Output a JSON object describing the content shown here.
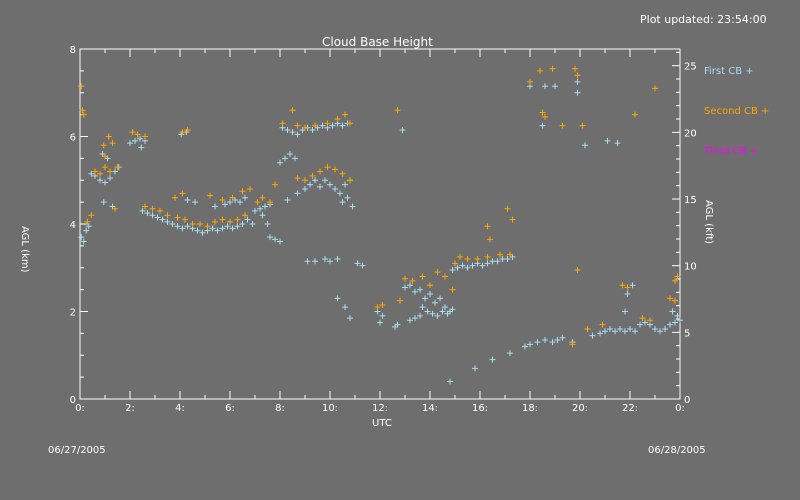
{
  "header": {
    "updated": "Plot updated: 23:54:00"
  },
  "footer": {
    "start_date": "06/27/2005",
    "end_date": "06/28/2005"
  },
  "colors": {
    "background": "#6e6e6e",
    "axes": "#ffffff",
    "first_cb": "#a8dcf0",
    "second_cb": "#ffa500",
    "third_cb": "#ff00ff"
  },
  "chart_data": {
    "type": "scatter",
    "title": "Cloud Base Height",
    "xlabel": "UTC",
    "ylabel": "AGL (km)",
    "ylabel_right": "AGL (kft)",
    "xlim": [
      0,
      24
    ],
    "ylim": [
      0,
      8
    ],
    "ylim_right": [
      0,
      26.25
    ],
    "x_tick_labels": [
      "0:",
      "2:",
      "4:",
      "6:",
      "8:",
      "10:",
      "12:",
      "14:",
      "16:",
      "18:",
      "20:",
      "22:",
      "0:"
    ],
    "x_tick_values": [
      0,
      2,
      4,
      6,
      8,
      10,
      12,
      14,
      16,
      18,
      20,
      22,
      24
    ],
    "y_tick_labels": [
      "0",
      "2",
      "4",
      "6",
      "8"
    ],
    "y_tick_values": [
      0,
      2,
      4,
      6,
      8
    ],
    "y_right_tick_labels": [
      "0",
      "5",
      "10",
      "15",
      "20",
      "25"
    ],
    "y_right_tick_values": [
      0,
      5,
      10,
      15,
      20,
      25
    ],
    "legend": [
      {
        "label": "First CB +",
        "color": "#a8dcf0"
      },
      {
        "label": "Second CB +",
        "color": "#ffa500"
      },
      {
        "label": "Third CB +",
        "color": "#ff00ff"
      }
    ],
    "series": [
      {
        "name": "First CB",
        "color": "#a8dcf0",
        "points": [
          [
            0.05,
            3.7
          ],
          [
            0.15,
            3.6
          ],
          [
            0.25,
            3.85
          ],
          [
            0.35,
            3.95
          ],
          [
            0.45,
            5.15
          ],
          [
            0.6,
            5.1
          ],
          [
            0.8,
            5.0
          ],
          [
            1.0,
            4.95
          ],
          [
            1.2,
            5.05
          ],
          [
            1.4,
            5.2
          ],
          [
            1.55,
            5.3
          ],
          [
            0.9,
            5.6
          ],
          [
            1.1,
            5.5
          ],
          [
            0.95,
            4.5
          ],
          [
            1.3,
            4.4
          ],
          [
            2.0,
            5.85
          ],
          [
            2.2,
            5.9
          ],
          [
            2.4,
            5.95
          ],
          [
            2.6,
            5.9
          ],
          [
            2.45,
            5.75
          ],
          [
            2.5,
            4.3
          ],
          [
            2.7,
            4.25
          ],
          [
            2.9,
            4.2
          ],
          [
            3.1,
            4.15
          ],
          [
            3.3,
            4.1
          ],
          [
            3.5,
            4.05
          ],
          [
            3.7,
            4.0
          ],
          [
            3.9,
            3.95
          ],
          [
            4.1,
            3.9
          ],
          [
            4.3,
            3.95
          ],
          [
            4.5,
            3.9
          ],
          [
            4.7,
            3.85
          ],
          [
            4.9,
            3.8
          ],
          [
            5.1,
            3.85
          ],
          [
            5.3,
            3.9
          ],
          [
            5.5,
            3.85
          ],
          [
            5.7,
            3.9
          ],
          [
            5.9,
            3.95
          ],
          [
            6.1,
            3.9
          ],
          [
            6.3,
            3.95
          ],
          [
            6.5,
            4.0
          ],
          [
            6.7,
            4.1
          ],
          [
            6.9,
            4.0
          ],
          [
            4.05,
            6.05
          ],
          [
            4.25,
            6.1
          ],
          [
            4.3,
            4.55
          ],
          [
            4.6,
            4.5
          ],
          [
            5.4,
            4.4
          ],
          [
            5.8,
            4.45
          ],
          [
            6.0,
            4.5
          ],
          [
            6.2,
            4.55
          ],
          [
            6.4,
            4.5
          ],
          [
            6.6,
            4.6
          ],
          [
            7.0,
            4.3
          ],
          [
            7.2,
            4.35
          ],
          [
            7.4,
            4.4
          ],
          [
            7.6,
            4.45
          ],
          [
            7.3,
            4.2
          ],
          [
            7.5,
            4.0
          ],
          [
            7.6,
            3.7
          ],
          [
            7.8,
            3.65
          ],
          [
            8.0,
            3.6
          ],
          [
            8.0,
            5.4
          ],
          [
            8.2,
            5.5
          ],
          [
            8.4,
            5.6
          ],
          [
            8.6,
            5.5
          ],
          [
            8.1,
            6.2
          ],
          [
            8.3,
            6.15
          ],
          [
            8.5,
            6.1
          ],
          [
            8.7,
            6.05
          ],
          [
            8.9,
            6.15
          ],
          [
            9.1,
            6.2
          ],
          [
            9.3,
            6.15
          ],
          [
            9.5,
            6.2
          ],
          [
            9.7,
            6.25
          ],
          [
            9.9,
            6.2
          ],
          [
            8.3,
            4.55
          ],
          [
            8.7,
            4.7
          ],
          [
            9.0,
            4.8
          ],
          [
            9.2,
            4.9
          ],
          [
            9.4,
            5.0
          ],
          [
            9.6,
            4.85
          ],
          [
            9.8,
            5.0
          ],
          [
            10.0,
            4.9
          ],
          [
            10.2,
            4.8
          ],
          [
            10.4,
            4.7
          ],
          [
            10.6,
            4.9
          ],
          [
            10.8,
            5.0
          ],
          [
            10.1,
            6.25
          ],
          [
            10.3,
            6.3
          ],
          [
            10.5,
            6.25
          ],
          [
            10.7,
            6.3
          ],
          [
            10.5,
            4.5
          ],
          [
            10.7,
            4.6
          ],
          [
            10.9,
            4.4
          ],
          [
            9.1,
            3.15
          ],
          [
            9.4,
            3.15
          ],
          [
            9.8,
            3.2
          ],
          [
            10.0,
            3.15
          ],
          [
            10.3,
            3.2
          ],
          [
            10.3,
            2.3
          ],
          [
            10.6,
            2.1
          ],
          [
            10.8,
            1.85
          ],
          [
            11.1,
            3.1
          ],
          [
            11.3,
            3.05
          ],
          [
            11.9,
            2.0
          ],
          [
            12.1,
            1.9
          ],
          [
            12.0,
            1.75
          ],
          [
            12.6,
            1.65
          ],
          [
            12.7,
            1.7
          ],
          [
            12.9,
            6.15
          ],
          [
            13.0,
            2.55
          ],
          [
            13.2,
            2.6
          ],
          [
            13.4,
            2.45
          ],
          [
            13.6,
            2.5
          ],
          [
            13.7,
            2.1
          ],
          [
            13.9,
            2.0
          ],
          [
            14.1,
            1.95
          ],
          [
            14.3,
            1.9
          ],
          [
            14.5,
            2.0
          ],
          [
            14.7,
            1.95
          ],
          [
            14.9,
            2.05
          ],
          [
            13.2,
            1.8
          ],
          [
            13.4,
            1.85
          ],
          [
            13.6,
            1.9
          ],
          [
            13.8,
            2.3
          ],
          [
            14.0,
            2.4
          ],
          [
            14.2,
            2.2
          ],
          [
            14.4,
            2.3
          ],
          [
            14.6,
            2.1
          ],
          [
            14.8,
            2.0
          ],
          [
            14.9,
            2.95
          ],
          [
            15.1,
            3.0
          ],
          [
            15.3,
            3.05
          ],
          [
            15.5,
            3.0
          ],
          [
            15.7,
            3.05
          ],
          [
            15.9,
            3.1
          ],
          [
            16.1,
            3.05
          ],
          [
            16.3,
            3.1
          ],
          [
            16.5,
            3.15
          ],
          [
            16.7,
            3.15
          ],
          [
            16.9,
            3.2
          ],
          [
            17.1,
            3.2
          ],
          [
            17.3,
            3.25
          ],
          [
            14.8,
            0.4
          ],
          [
            15.8,
            0.7
          ],
          [
            16.5,
            0.9
          ],
          [
            17.2,
            1.05
          ],
          [
            17.8,
            1.2
          ],
          [
            18.0,
            1.25
          ],
          [
            18.3,
            1.3
          ],
          [
            18.6,
            1.35
          ],
          [
            18.9,
            1.3
          ],
          [
            19.1,
            1.35
          ],
          [
            19.3,
            1.4
          ],
          [
            19.7,
            1.3
          ],
          [
            18.5,
            6.25
          ],
          [
            18.0,
            7.15
          ],
          [
            18.6,
            7.15
          ],
          [
            19.0,
            7.15
          ],
          [
            19.9,
            7.25
          ],
          [
            19.9,
            7.0
          ],
          [
            20.2,
            5.8
          ],
          [
            21.1,
            5.9
          ],
          [
            21.5,
            5.85
          ],
          [
            20.5,
            1.45
          ],
          [
            20.8,
            1.5
          ],
          [
            21.0,
            1.55
          ],
          [
            21.2,
            1.6
          ],
          [
            21.4,
            1.55
          ],
          [
            21.6,
            1.6
          ],
          [
            21.8,
            1.55
          ],
          [
            22.0,
            1.6
          ],
          [
            22.2,
            1.55
          ],
          [
            21.8,
            2.0
          ],
          [
            21.9,
            2.4
          ],
          [
            22.1,
            2.6
          ],
          [
            22.4,
            1.7
          ],
          [
            22.6,
            1.75
          ],
          [
            22.8,
            1.7
          ],
          [
            23.0,
            1.6
          ],
          [
            23.2,
            1.55
          ],
          [
            23.4,
            1.6
          ],
          [
            23.6,
            1.7
          ],
          [
            23.8,
            1.75
          ],
          [
            24.0,
            1.8
          ],
          [
            23.7,
            2.0
          ],
          [
            23.9,
            1.9
          ]
        ]
      },
      {
        "name": "Second CB",
        "color": "#ffa500",
        "points": [
          [
            0.05,
            7.15
          ],
          [
            0.1,
            6.6
          ],
          [
            0.15,
            6.5
          ],
          [
            0.3,
            4.05
          ],
          [
            0.45,
            4.2
          ],
          [
            0.6,
            5.2
          ],
          [
            0.8,
            5.15
          ],
          [
            1.0,
            5.3
          ],
          [
            1.2,
            5.2
          ],
          [
            1.0,
            5.55
          ],
          [
            0.95,
            5.8
          ],
          [
            1.15,
            6.0
          ],
          [
            1.3,
            5.85
          ],
          [
            1.5,
            5.3
          ],
          [
            1.4,
            4.35
          ],
          [
            2.1,
            6.1
          ],
          [
            2.3,
            6.05
          ],
          [
            2.6,
            6.0
          ],
          [
            2.6,
            4.4
          ],
          [
            2.9,
            4.35
          ],
          [
            3.2,
            4.3
          ],
          [
            3.5,
            4.2
          ],
          [
            3.9,
            4.15
          ],
          [
            4.2,
            4.1
          ],
          [
            4.5,
            4.0
          ],
          [
            4.8,
            4.0
          ],
          [
            5.1,
            3.95
          ],
          [
            5.4,
            4.05
          ],
          [
            5.7,
            4.1
          ],
          [
            6.0,
            4.05
          ],
          [
            6.3,
            4.1
          ],
          [
            6.6,
            4.2
          ],
          [
            3.8,
            4.6
          ],
          [
            4.1,
            4.7
          ],
          [
            5.2,
            4.65
          ],
          [
            5.7,
            4.55
          ],
          [
            6.1,
            4.6
          ],
          [
            6.5,
            4.75
          ],
          [
            6.8,
            4.8
          ],
          [
            4.1,
            6.1
          ],
          [
            4.3,
            6.15
          ],
          [
            7.1,
            4.5
          ],
          [
            7.3,
            4.6
          ],
          [
            7.6,
            4.5
          ],
          [
            7.8,
            4.9
          ],
          [
            8.1,
            6.3
          ],
          [
            8.5,
            6.6
          ],
          [
            8.7,
            6.25
          ],
          [
            9.0,
            6.2
          ],
          [
            9.4,
            6.25
          ],
          [
            9.9,
            6.3
          ],
          [
            10.3,
            6.4
          ],
          [
            10.6,
            6.5
          ],
          [
            10.8,
            6.3
          ],
          [
            8.7,
            5.05
          ],
          [
            9.0,
            5.0
          ],
          [
            9.3,
            5.1
          ],
          [
            9.6,
            5.2
          ],
          [
            9.9,
            5.3
          ],
          [
            10.2,
            5.25
          ],
          [
            10.5,
            5.15
          ],
          [
            10.8,
            5.0
          ],
          [
            11.9,
            2.1
          ],
          [
            12.1,
            2.15
          ],
          [
            12.7,
            6.6
          ],
          [
            12.8,
            2.25
          ],
          [
            13.0,
            2.75
          ],
          [
            13.3,
            2.7
          ],
          [
            13.7,
            2.8
          ],
          [
            14.0,
            2.6
          ],
          [
            14.3,
            2.9
          ],
          [
            14.6,
            2.8
          ],
          [
            14.9,
            2.5
          ],
          [
            15.0,
            3.1
          ],
          [
            15.2,
            3.25
          ],
          [
            15.5,
            3.2
          ],
          [
            15.9,
            3.2
          ],
          [
            16.3,
            3.25
          ],
          [
            16.8,
            3.3
          ],
          [
            17.2,
            3.3
          ],
          [
            16.3,
            3.95
          ],
          [
            16.4,
            3.65
          ],
          [
            17.1,
            4.35
          ],
          [
            17.3,
            4.1
          ],
          [
            18.0,
            7.25
          ],
          [
            18.4,
            7.5
          ],
          [
            18.9,
            7.55
          ],
          [
            19.8,
            7.55
          ],
          [
            19.9,
            7.4
          ],
          [
            18.5,
            6.55
          ],
          [
            18.6,
            6.45
          ],
          [
            19.3,
            6.25
          ],
          [
            20.1,
            6.25
          ],
          [
            19.9,
            2.95
          ],
          [
            19.7,
            1.25
          ],
          [
            20.3,
            1.6
          ],
          [
            20.9,
            1.7
          ],
          [
            21.7,
            2.6
          ],
          [
            21.9,
            2.55
          ],
          [
            22.2,
            6.5
          ],
          [
            23.0,
            7.1
          ],
          [
            22.5,
            1.85
          ],
          [
            22.8,
            1.8
          ],
          [
            23.6,
            2.3
          ],
          [
            23.8,
            2.7
          ],
          [
            23.9,
            2.8
          ],
          [
            23.8,
            2.25
          ]
        ]
      },
      {
        "name": "Third CB",
        "color": "#ff00ff",
        "points": []
      }
    ]
  }
}
